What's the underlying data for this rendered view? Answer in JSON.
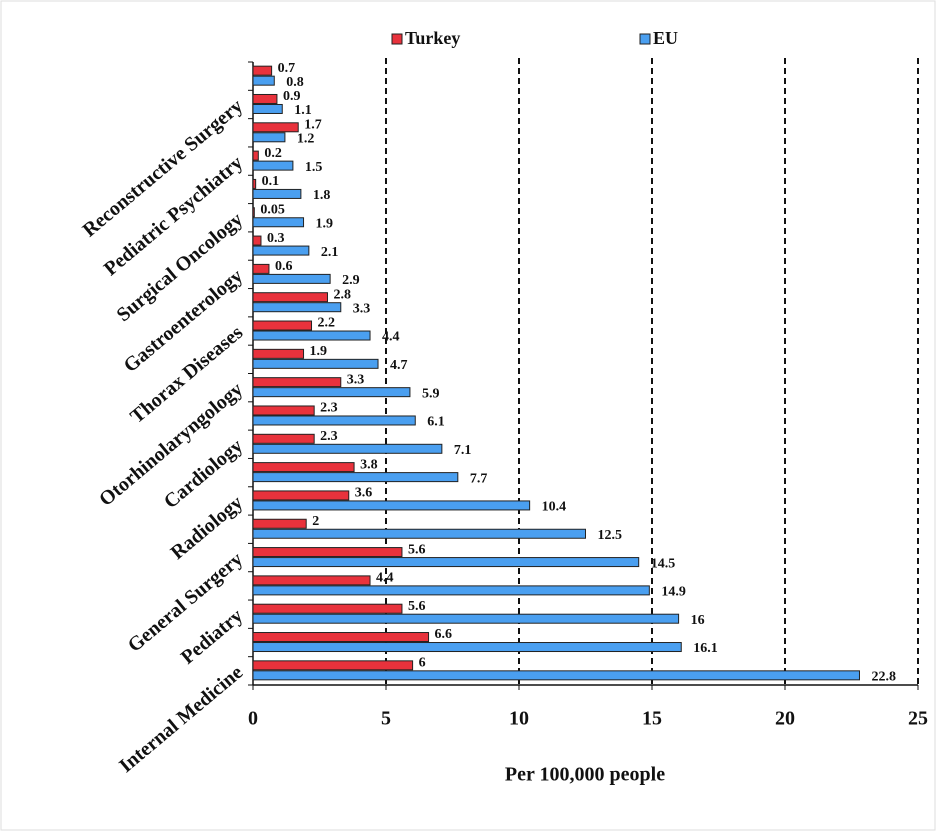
{
  "chart_data": {
    "type": "bar",
    "orientation": "horizontal",
    "xlabel": "Per 100,000 people",
    "categories": [
      "Internal Medicine",
      null,
      "Pediatry",
      null,
      "General Surgery",
      null,
      "Radiology",
      null,
      "Cardiology",
      null,
      "Otorhinolaryngology",
      null,
      "Thorax Diseases",
      null,
      "Gastroenterology",
      null,
      "Surgical Oncology",
      null,
      "Pediatric Psychiatry",
      null,
      "Reconstructive Surgery",
      null
    ],
    "series": [
      {
        "name": "Turkey",
        "color": "#e8323c",
        "values": [
          6,
          6.6,
          5.6,
          4.4,
          5.6,
          2,
          3.6,
          3.8,
          2.3,
          2.3,
          3.3,
          1.9,
          2.2,
          2.8,
          0.6,
          0.3,
          0.05,
          0.1,
          0.2,
          1.7,
          0.9,
          0.7
        ]
      },
      {
        "name": "EU",
        "color": "#4a9ff0",
        "values": [
          22.8,
          16.1,
          16,
          14.9,
          14.5,
          12.5,
          10.4,
          7.7,
          7.1,
          6.1,
          5.9,
          4.7,
          4.4,
          3.3,
          2.9,
          2.1,
          1.9,
          1.8,
          1.5,
          1.2,
          1.1,
          0.8
        ]
      }
    ],
    "xlim": [
      0,
      25
    ],
    "xticks": [
      0,
      5,
      10,
      15,
      20,
      25
    ],
    "grid": true,
    "legend": "top"
  }
}
